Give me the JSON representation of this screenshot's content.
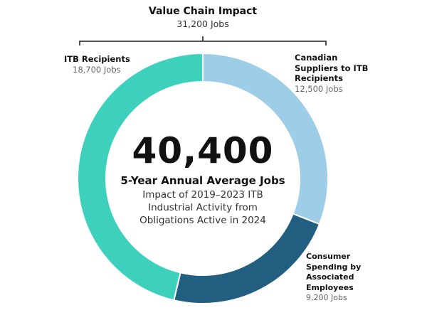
{
  "header": {
    "title": "Value Chain Impact",
    "subtitle": "31,200 Jobs"
  },
  "center": {
    "total": "40,400",
    "headline": "5-Year Annual Average Jobs",
    "description_lines": [
      "Impact of 2019–2023 ITB",
      "Industrial Activity from",
      "Obligations Active in 2024"
    ]
  },
  "chart_data": {
    "type": "pie",
    "donut": true,
    "start": "12 o'clock, clockwise",
    "segments": [
      {
        "name": "Canadian Suppliers to ITB Recipients",
        "value": 12500,
        "label": "12,500 Jobs",
        "color": "#9ecde8"
      },
      {
        "name": "Consumer Spending by Associated Employees",
        "value": 9200,
        "label": "9,200 Jobs",
        "color": "#215e80"
      },
      {
        "name": "ITB Recipients",
        "value": 18700,
        "label": "18,700 Jobs",
        "color": "#3dd1bd"
      }
    ]
  },
  "labels": {
    "itb": {
      "name": "ITB Recipients",
      "value": "18,700 Jobs"
    },
    "suppliers": {
      "name_lines": [
        "Canadian",
        "Suppliers to ITB",
        "Recipients"
      ],
      "value": "12,500 Jobs"
    },
    "consumer": {
      "name_lines": [
        "Consumer",
        "Spending by",
        "Associated",
        "Employees"
      ],
      "value": "9,200 Jobs"
    }
  }
}
